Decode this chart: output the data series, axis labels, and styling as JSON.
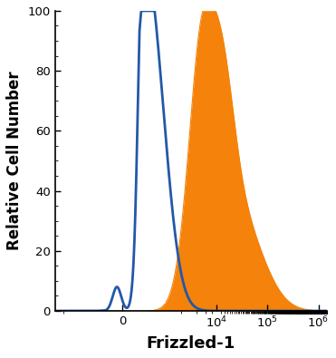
{
  "title": "",
  "xlabel": "Frizzled-1",
  "ylabel": "Relative Cell Number",
  "xlabel_fontsize": 13,
  "ylabel_fontsize": 12,
  "ylim": [
    0,
    100
  ],
  "yticks": [
    0,
    20,
    40,
    60,
    80,
    100
  ],
  "line_color": "#2358a8",
  "fill_color": "#f5820a",
  "fill_alpha": 1.0,
  "line_width": 2.0,
  "background_color": "#ffffff",
  "linthresh": 300
}
